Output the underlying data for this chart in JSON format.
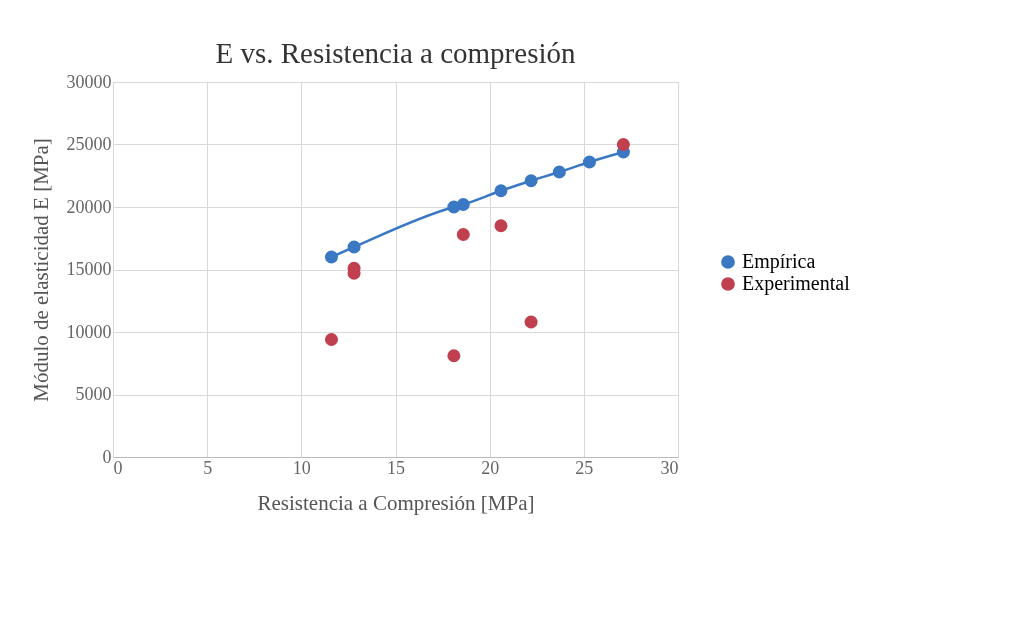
{
  "chart_data": {
    "type": "scatter",
    "title": "E vs. Resistencia a compresión",
    "xlabel": "Resistencia a Compresión [MPa]",
    "ylabel": "Módulo de elasticidad E [MPa]",
    "xlim": [
      0,
      30
    ],
    "xticks": [
      0,
      5,
      10,
      15,
      20,
      25,
      30
    ],
    "ylim": [
      0,
      30000
    ],
    "yticks": [
      0,
      5000,
      10000,
      15000,
      20000,
      25000,
      30000
    ],
    "grid": true,
    "legend": "right",
    "marker": "circle",
    "series": [
      {
        "name": "Empírica",
        "type": "line",
        "color": "#3a78c3",
        "x": [
          11.6,
          12.8,
          18.1,
          18.6,
          20.6,
          22.2,
          23.7,
          25.3,
          27.1
        ],
        "values": [
          16000,
          16800,
          20000,
          20200,
          21300,
          22100,
          22800,
          23600,
          24400
        ]
      },
      {
        "name": "Experimental",
        "color": "#c0404f",
        "x": [
          11.6,
          12.8,
          12.8,
          18.6,
          20.6,
          18.1,
          22.2,
          27.1
        ],
        "values": [
          9400,
          15100,
          14700,
          17800,
          18500,
          8100,
          10800,
          25000
        ]
      }
    ]
  }
}
